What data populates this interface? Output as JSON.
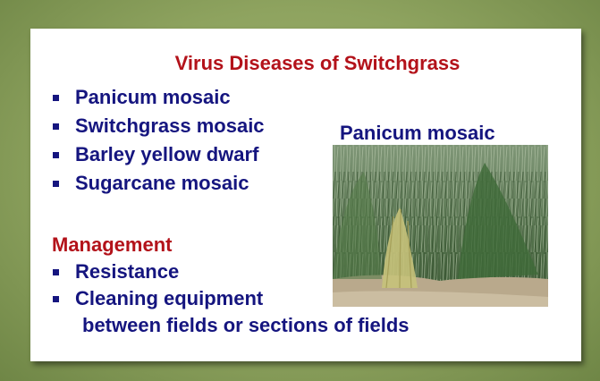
{
  "slide": {
    "title": "Virus Diseases of Switchgrass",
    "diseases": [
      "Panicum mosaic",
      "Switchgrass mosaic",
      "Barley yellow dwarf",
      "Sugarcane mosaic"
    ],
    "image_caption": "Panicum mosaic",
    "management": {
      "heading": "Management",
      "items": [
        "Resistance",
        [
          "Cleaning equipment",
          "between fields or sections of fields"
        ]
      ]
    }
  }
}
